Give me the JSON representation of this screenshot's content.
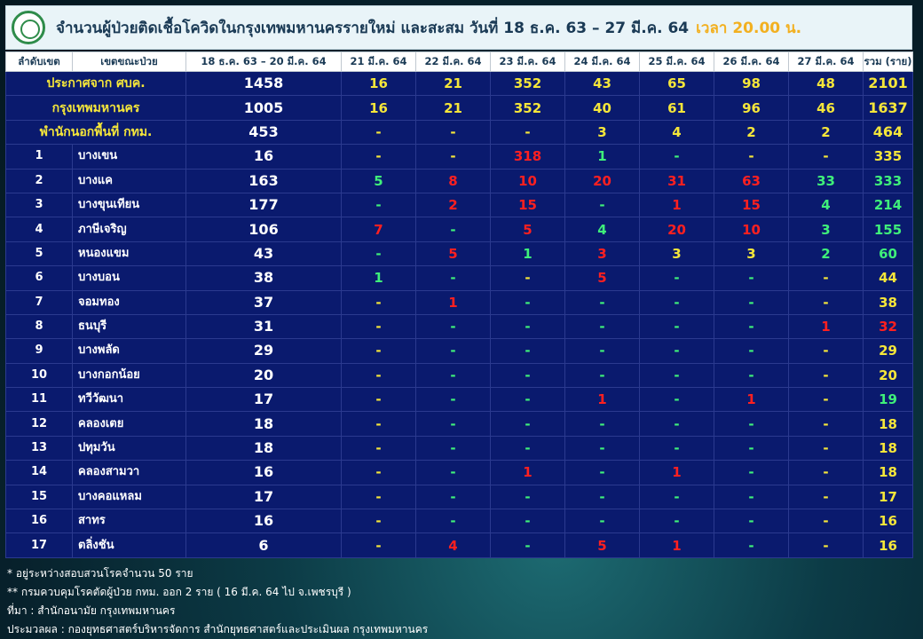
{
  "title": {
    "main": "จำนวนผู้ป่วยติดเชื้อโควิดในกรุงเทพมหานครรายใหม่ และสะสม วันที่ 18 ธ.ค. 63 – 27 มี.ค. 64",
    "time": "เวลา 20.00 น."
  },
  "headers": [
    "ลำดับเขต",
    "เขตขณะป่วย",
    "18 ธ.ค. 63 – 20 มี.ค. 64",
    "21 มี.ค. 64",
    "22 มี.ค. 64",
    "23 มี.ค. 64",
    "24 มี.ค. 64",
    "25 มี.ค. 64",
    "26 มี.ค. 64",
    "27 มี.ค. 64",
    "รวม (ราย)"
  ],
  "summary_rows": [
    {
      "label": "ประกาศจาก ศบค.",
      "main": "1458",
      "days": [
        "16",
        "21",
        "352",
        "43",
        "65",
        "98",
        "48"
      ],
      "total": "2101"
    },
    {
      "label": "กรุงเทพมหานคร",
      "main": "1005",
      "days": [
        "16",
        "21",
        "352",
        "40",
        "61",
        "96",
        "46"
      ],
      "total": "1637"
    },
    {
      "label": "พำนักนอกพื้นที่ กทม.",
      "main": "453",
      "days": [
        "-",
        "-",
        "-",
        "3",
        "4",
        "2",
        "2"
      ],
      "total": "464"
    }
  ],
  "district_rows": [
    {
      "no": "1",
      "name": "บางเขน",
      "main": "16",
      "days": [
        "-",
        "-",
        "318",
        "1",
        "-",
        "-",
        "-"
      ],
      "total": "335"
    },
    {
      "no": "2",
      "name": "บางแค",
      "main": "163",
      "days": [
        "5",
        "8",
        "10",
        "20",
        "31",
        "63",
        "33"
      ],
      "total": "333"
    },
    {
      "no": "3",
      "name": "บางขุนเทียน",
      "main": "177",
      "days": [
        "-",
        "2",
        "15",
        "-",
        "1",
        "15",
        "4"
      ],
      "total": "214"
    },
    {
      "no": "4",
      "name": "ภาษีเจริญ",
      "main": "106",
      "days": [
        "7",
        "-",
        "5",
        "4",
        "20",
        "10",
        "3"
      ],
      "total": "155"
    },
    {
      "no": "5",
      "name": "หนองแขม",
      "main": "43",
      "days": [
        "-",
        "5",
        "1",
        "3",
        "3",
        "3",
        "2"
      ],
      "total": "60"
    },
    {
      "no": "6",
      "name": "บางบอน",
      "main": "38",
      "days": [
        "1",
        "-",
        "-",
        "5",
        "-",
        "-",
        "-"
      ],
      "total": "44"
    },
    {
      "no": "7",
      "name": "จอมทอง",
      "main": "37",
      "days": [
        "-",
        "1",
        "-",
        "-",
        "-",
        "-",
        "-"
      ],
      "total": "38"
    },
    {
      "no": "8",
      "name": "ธนบุรี",
      "main": "31",
      "days": [
        "-",
        "-",
        "-",
        "-",
        "-",
        "-",
        "1"
      ],
      "total": "32"
    },
    {
      "no": "9",
      "name": "บางพลัด",
      "main": "29",
      "days": [
        "-",
        "-",
        "-",
        "-",
        "-",
        "-",
        "-"
      ],
      "total": "29"
    },
    {
      "no": "10",
      "name": "บางกอกน้อย",
      "main": "20",
      "days": [
        "-",
        "-",
        "-",
        "-",
        "-",
        "-",
        "-"
      ],
      "total": "20"
    },
    {
      "no": "11",
      "name": "ทวีวัฒนา",
      "main": "17",
      "days": [
        "-",
        "-",
        "-",
        "1",
        "-",
        "1",
        "-"
      ],
      "total": "19"
    },
    {
      "no": "12",
      "name": "คลองเตย",
      "main": "18",
      "days": [
        "-",
        "-",
        "-",
        "-",
        "-",
        "-",
        "-"
      ],
      "total": "18"
    },
    {
      "no": "13",
      "name": "ปทุมวัน",
      "main": "18",
      "days": [
        "-",
        "-",
        "-",
        "-",
        "-",
        "-",
        "-"
      ],
      "total": "18"
    },
    {
      "no": "14",
      "name": "คลองสามวา",
      "main": "16",
      "days": [
        "-",
        "-",
        "1",
        "-",
        "1",
        "-",
        "-"
      ],
      "total": "18"
    },
    {
      "no": "15",
      "name": "บางคอแหลม",
      "main": "17",
      "days": [
        "-",
        "-",
        "-",
        "-",
        "-",
        "-",
        "-"
      ],
      "total": "17"
    },
    {
      "no": "16",
      "name": "สาทร",
      "main": "16",
      "days": [
        "-",
        "-",
        "-",
        "-",
        "-",
        "-",
        "-"
      ],
      "total": "16"
    },
    {
      "no": "17",
      "name": "ตลิ่งชัน",
      "main": "6",
      "days": [
        "-",
        "4",
        "-",
        "5",
        "1",
        "-",
        "-"
      ],
      "total": "16"
    }
  ],
  "footnotes": [
    "* อยู่ระหว่างสอบสวนโรคจำนวน 50 ราย",
    "** กรมควบคุมโรคตัดผู้ป่วย กทม. ออก 2 ราย ( 16 มี.ค. 64 ไป จ.เพชรบุรี )",
    "ที่มา : สำนักอนามัย กรุงเทพมหานคร",
    "ประมวลผล : กองยุทธศาสตร์บริหารจัดการ สำนักยุทธศาสตร์และประเมินผล กรุงเทพมหานคร"
  ],
  "colors": {
    "red": "#ff2020",
    "green": "#3ff07a",
    "yellow": "#f5e63a",
    "white": "#ffffff",
    "table_bg": "#0a1a6e",
    "title_time": "#f2b020"
  },
  "value_colors": {
    "summary": [
      [
        "yellow",
        "yellow",
        "yellow",
        "yellow",
        "yellow",
        "yellow",
        "yellow"
      ],
      [
        "yellow",
        "yellow",
        "yellow",
        "yellow",
        "yellow",
        "yellow",
        "yellow"
      ],
      [
        "yellow",
        "yellow",
        "yellow",
        "yellow",
        "yellow",
        "yellow",
        "yellow"
      ]
    ],
    "districts": [
      [
        "yellow",
        "yellow",
        "red",
        "green",
        "green",
        "yellow",
        "yellow"
      ],
      [
        "green",
        "red",
        "red",
        "red",
        "red",
        "red",
        "green"
      ],
      [
        "green",
        "red",
        "red",
        "green",
        "red",
        "red",
        "green"
      ],
      [
        "red",
        "green",
        "red",
        "green",
        "red",
        "red",
        "green"
      ],
      [
        "green",
        "red",
        "green",
        "red",
        "yellow",
        "yellow",
        "green"
      ],
      [
        "green",
        "green",
        "yellow",
        "red",
        "green",
        "green",
        "yellow"
      ],
      [
        "yellow",
        "red",
        "green",
        "green",
        "green",
        "green",
        "yellow"
      ],
      [
        "yellow",
        "green",
        "green",
        "green",
        "green",
        "green",
        "red"
      ],
      [
        "yellow",
        "green",
        "green",
        "green",
        "green",
        "green",
        "yellow"
      ],
      [
        "yellow",
        "green",
        "green",
        "green",
        "green",
        "green",
        "yellow"
      ],
      [
        "yellow",
        "green",
        "green",
        "red",
        "green",
        "red",
        "yellow"
      ],
      [
        "yellow",
        "green",
        "green",
        "green",
        "green",
        "green",
        "yellow"
      ],
      [
        "yellow",
        "green",
        "green",
        "green",
        "green",
        "green",
        "yellow"
      ],
      [
        "yellow",
        "green",
        "red",
        "green",
        "red",
        "green",
        "yellow"
      ],
      [
        "yellow",
        "green",
        "green",
        "green",
        "green",
        "green",
        "yellow"
      ],
      [
        "yellow",
        "green",
        "green",
        "green",
        "green",
        "green",
        "yellow"
      ],
      [
        "yellow",
        "red",
        "green",
        "red",
        "red",
        "green",
        "yellow"
      ]
    ],
    "district_totals": [
      "yellow",
      "green",
      "green",
      "green",
      "green",
      "yellow",
      "yellow",
      "red",
      "yellow",
      "yellow",
      "green",
      "yellow",
      "yellow",
      "yellow",
      "yellow",
      "yellow",
      "yellow"
    ]
  },
  "icons": {
    "seal": "bangkok-city-seal-icon"
  }
}
